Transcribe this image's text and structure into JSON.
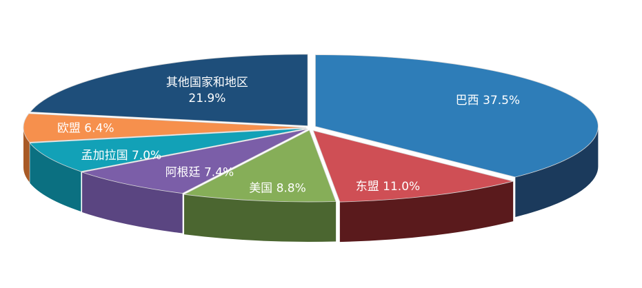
{
  "chart_data": {
    "type": "pie",
    "title": "",
    "style": "3d-exploded",
    "slices": [
      {
        "name": "巴西",
        "value": 37.5,
        "label": "巴西 37.5%",
        "color": "#2e7db8",
        "side_color": "#1b3a5c"
      },
      {
        "name": "东盟",
        "value": 11.0,
        "label": "东盟 11.0%",
        "color": "#cf4f55",
        "side_color": "#5a1a1c"
      },
      {
        "name": "美国",
        "value": 8.8,
        "label": "美国 8.8%",
        "color": "#86ae58",
        "side_color": "#4b6630"
      },
      {
        "name": "阿根廷",
        "value": 7.4,
        "label": "阿根廷 7.4%",
        "color": "#7b5ea8",
        "side_color": "#5a4581"
      },
      {
        "name": "孟加拉国",
        "value": 7.0,
        "label": "孟加拉国 7.0%",
        "color": "#12a1b7",
        "side_color": "#0b7081"
      },
      {
        "name": "欧盟",
        "value": 6.4,
        "label": "欧盟 6.4%",
        "color": "#f6904d",
        "side_color": "#a85a26"
      },
      {
        "name": "其他国家和地区",
        "value": 21.9,
        "label": "其他国家和地区\n21.9%",
        "color": "#1e4e7a",
        "side_color": "#12314f"
      }
    ]
  }
}
